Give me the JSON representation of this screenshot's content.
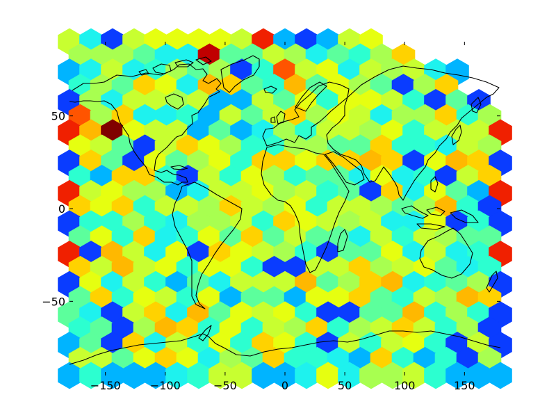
{
  "chart_data": {
    "type": "heatmap",
    "subtype": "hexbin",
    "title": "",
    "xlabel": "",
    "ylabel": "",
    "xlim": [
      -180,
      180
    ],
    "ylim": [
      -90,
      90
    ],
    "x_ticks": [
      -150,
      -100,
      -50,
      0,
      50,
      100,
      150
    ],
    "x_tick_labels": [
      "−150",
      "−100",
      "−50",
      "0",
      "50",
      "100",
      "150"
    ],
    "y_ticks": [
      50,
      0,
      -50
    ],
    "y_tick_labels": [
      "50",
      "0",
      "−50"
    ],
    "colormap": "jet",
    "grid": false,
    "legend": "none",
    "background_layer": "world coastlines",
    "hex_grid": {
      "columns_a": 21,
      "columns_b": 20,
      "rows": 23
    },
    "row_codes": [
      "a:bCAbddddbrBABbd",
      "b:DDDaCCRaabDCacDE",
      "a:BCbCcDaDAcFbdCbDbCB",
      "b:cDaEdCeEaceadDaADE",
      "a:ADCbbDbBBbadcddbcAaA",
      "b:FDECCcBbabEDdbCDDEcD",
      "a:reGdbbBaBCDcbbDdcbbbr",
      "b:dbaAbEdDccDDaaEccCbD",
      "a:AEaAdaDdcEEdEEeEAdeEA",
      "b:cBEEcAbcdDcaaCdCcAbE",
      "a:rbdDDBCbbdDbcaAECdaBr",
      "b:EdEcbbDEbDdcbbDaDecA",
      "a:AccDcCDDbcEdbDbCCdAcA",
      "b:adcECcdaEabaaCbcbDaa",
      "a:rAebCdAEdbDcAaadCbCcr",
      "b:EbebdcddcAAbbEDbdaCc",
      "a:AdCbcBaCbbbeaDEeCcaDA",
      "b:aEcdbcdBaaBddEacbDeE",
      "a:aCAbECeadbdcAAaaecDcA",
      "b:caADeEcdcbDEcDbEbcDA",
      "a:BaAECbcdcEdcAbcbdcAbA",
      "b:bbadEdCDaEccCBEcBcAD",
      "a:BcBBBCcbbBBCdCDDbcBBB"
    ],
    "color_legend": {
      "A": "#0a3cff",
      "B": "#00b4ff",
      "C": "#1ef2ee",
      "D": "#a8ff50",
      "E": "#ffd200",
      "a": "#5cff9c",
      "b": "#c8ff30",
      "c": "#2cffd0",
      "d": "#e6ff10",
      "e": "#ffb800",
      "r": "#f02000",
      "R": "#c00000",
      "F": "#ff5400",
      "G": "#800000",
      "N": "#00007f"
    }
  }
}
